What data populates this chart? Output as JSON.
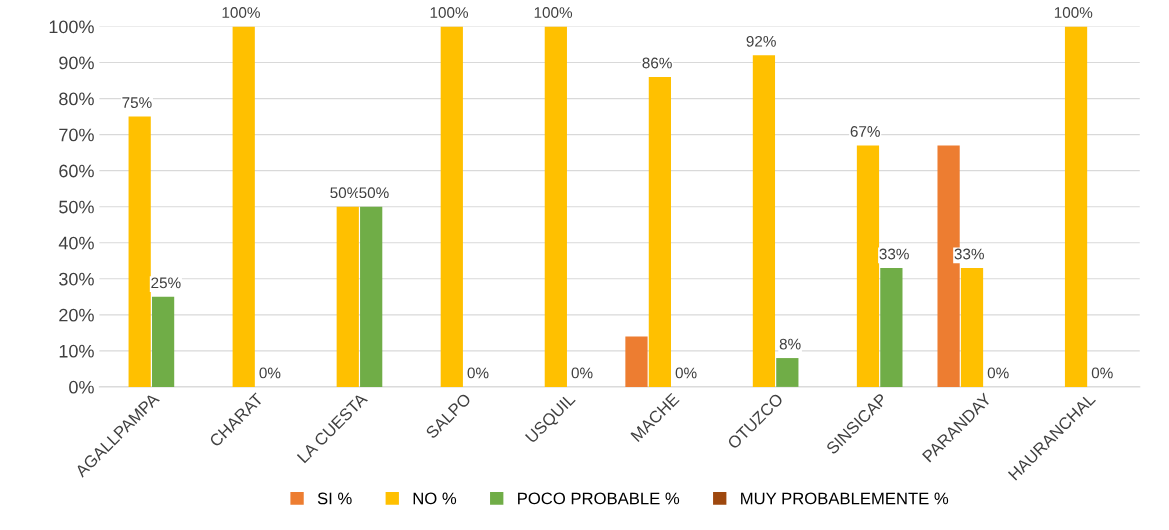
{
  "chart_data": {
    "type": "bar",
    "categories": [
      "AGALLPAMPA",
      "CHARAT",
      "LA CUESTA",
      "SALPO",
      "USQUIL",
      "MACHE",
      "OTUZCO",
      "SINSICAP",
      "PARANDAY",
      "HAURANCHAL"
    ],
    "series": [
      {
        "name": "SI %",
        "color": "#ed7d31",
        "values": [
          0,
          0,
          0,
          0,
          0,
          14,
          0,
          0,
          67,
          0
        ]
      },
      {
        "name": "NO %",
        "color": "#ffc000",
        "values": [
          75,
          100,
          50,
          100,
          100,
          86,
          92,
          67,
          33,
          100
        ],
        "value_labels": [
          "75%",
          "100%",
          "50%",
          "100%",
          "100%",
          "86%",
          "92%",
          "67%",
          "33%",
          "100%"
        ]
      },
      {
        "name": "POCO PROBABLE %",
        "color": "#70ad47",
        "values": [
          25,
          0,
          50,
          0,
          0,
          0,
          8,
          33,
          0,
          0
        ],
        "value_labels": [
          "25%",
          "0%",
          "50%",
          "0%",
          "0%",
          "0%",
          "8%",
          "33%",
          "0%",
          "0%"
        ]
      },
      {
        "name": "MUY PROBABLEMENTE %",
        "color": "#9e480e",
        "values": [
          0,
          0,
          0,
          0,
          0,
          0,
          0,
          0,
          0,
          0
        ]
      }
    ],
    "ylim": [
      0,
      100
    ],
    "yticks": [
      {
        "value": 0,
        "label": "0%"
      },
      {
        "value": 10,
        "label": "10%"
      },
      {
        "value": 20,
        "label": "20%"
      },
      {
        "value": 30,
        "label": "30%"
      },
      {
        "value": 40,
        "label": "40%"
      },
      {
        "value": 50,
        "label": "50%"
      },
      {
        "value": 60,
        "label": "60%"
      },
      {
        "value": 70,
        "label": "70%"
      },
      {
        "value": 80,
        "label": "80%"
      },
      {
        "value": 90,
        "label": "90%"
      },
      {
        "value": 100,
        "label": "100%"
      }
    ],
    "grid": "y",
    "legend": "bottom"
  }
}
